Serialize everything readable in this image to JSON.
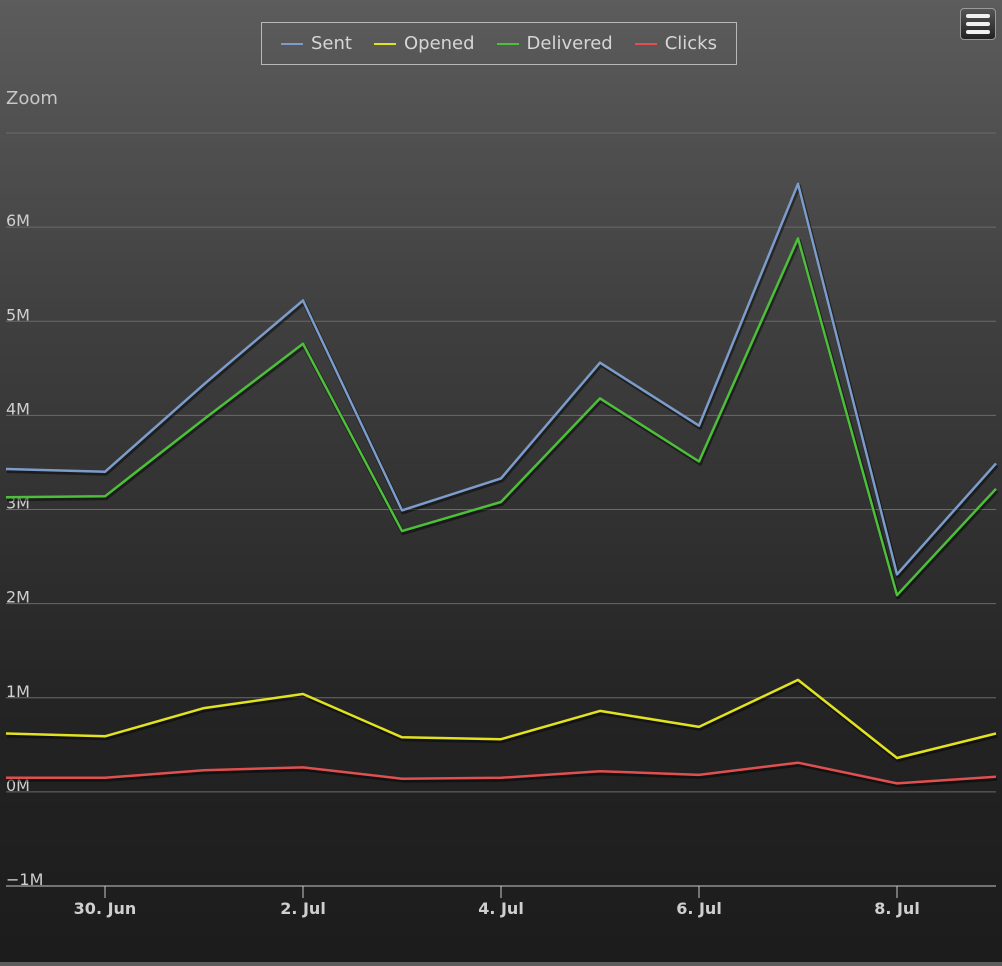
{
  "zoom_label": "Zoom",
  "legend": [
    {
      "name": "Sent",
      "color": "#7c9ccb"
    },
    {
      "name": "Opened",
      "color": "#e2e221"
    },
    {
      "name": "Delivered",
      "color": "#4dbf3a"
    },
    {
      "name": "Clicks",
      "color": "#e05050"
    }
  ],
  "menu_icon": "hamburger-menu-icon",
  "chart_data": {
    "type": "line",
    "x": [
      "2025-06-29",
      "2025-06-30",
      "2025-07-01",
      "2025-07-02",
      "2025-07-03",
      "2025-07-04",
      "2025-07-05",
      "2025-07-06",
      "2025-07-07",
      "2025-07-08",
      "2025-07-09"
    ],
    "x_ticks": [
      {
        "date": "2025-06-30",
        "label": "30. Jun"
      },
      {
        "date": "2025-07-02",
        "label": "2. Jul"
      },
      {
        "date": "2025-07-04",
        "label": "4. Jul"
      },
      {
        "date": "2025-07-06",
        "label": "6. Jul"
      },
      {
        "date": "2025-07-08",
        "label": "8. Jul"
      }
    ],
    "x_range": [
      "2025-06-29",
      "2025-07-09"
    ],
    "ylim": [
      -1000000,
      7000000
    ],
    "y_ticks": [
      {
        "value": -1000000,
        "label": "−1M"
      },
      {
        "value": 0,
        "label": "0M"
      },
      {
        "value": 1000000,
        "label": "1M"
      },
      {
        "value": 2000000,
        "label": "2M"
      },
      {
        "value": 3000000,
        "label": "3M"
      },
      {
        "value": 4000000,
        "label": "4M"
      },
      {
        "value": 5000000,
        "label": "5M"
      },
      {
        "value": 6000000,
        "label": "6M"
      }
    ],
    "grid": true,
    "legend_position": "top-center",
    "series": [
      {
        "name": "Sent",
        "color": "#7c9ccb",
        "values": [
          3430000,
          3400000,
          4330000,
          5220000,
          2990000,
          3330000,
          4560000,
          3890000,
          6460000,
          2310000,
          3490000
        ]
      },
      {
        "name": "Opened",
        "color": "#e2e221",
        "values": [
          620000,
          590000,
          890000,
          1040000,
          580000,
          560000,
          860000,
          690000,
          1190000,
          360000,
          620000
        ]
      },
      {
        "name": "Delivered",
        "color": "#4dbf3a",
        "values": [
          3130000,
          3140000,
          3960000,
          4760000,
          2770000,
          3080000,
          4180000,
          3510000,
          5880000,
          2090000,
          3220000
        ]
      },
      {
        "name": "Clicks",
        "color": "#e05050",
        "values": [
          150000,
          150000,
          230000,
          260000,
          140000,
          150000,
          220000,
          180000,
          310000,
          90000,
          160000
        ]
      }
    ]
  }
}
